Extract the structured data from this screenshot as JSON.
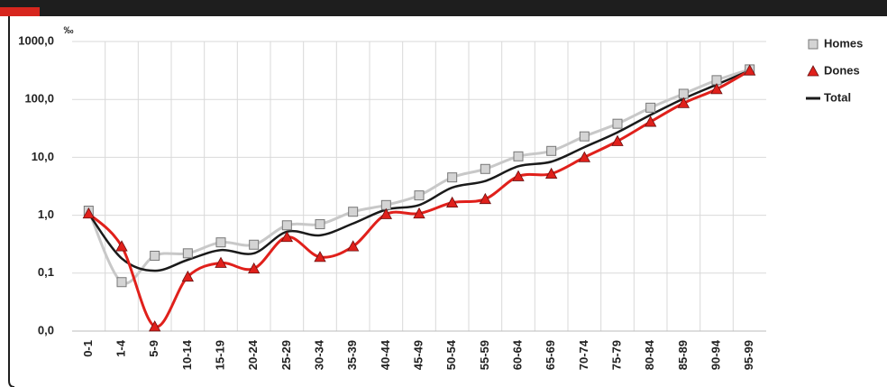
{
  "chart_data": {
    "type": "line",
    "y_unit": "‰",
    "categories": [
      "0-1",
      "1-4",
      "5-9",
      "10-14",
      "15-19",
      "20-24",
      "25-29",
      "30-34",
      "35-39",
      "40-44",
      "45-49",
      "50-54",
      "55-59",
      "60-64",
      "65-69",
      "70-74",
      "75-79",
      "80-84",
      "85-89",
      "90-94",
      "95-99"
    ],
    "series": [
      {
        "name": "Homes",
        "color": "#c8c8c8",
        "marker": "square",
        "values": [
          1.2,
          0.07,
          0.2,
          0.22,
          0.34,
          0.31,
          0.67,
          0.7,
          1.15,
          1.5,
          2.2,
          4.5,
          6.3,
          10.4,
          12.9,
          23,
          38,
          72,
          125,
          215,
          330
        ]
      },
      {
        "name": "Dones",
        "color": "#e0201b",
        "marker": "triangle",
        "values": [
          1.07,
          0.29,
          0.012,
          0.087,
          0.15,
          0.12,
          0.42,
          0.19,
          0.29,
          1.04,
          1.07,
          1.65,
          1.9,
          4.7,
          5.2,
          10,
          19,
          41,
          86,
          150,
          315
        ]
      },
      {
        "name": "Total",
        "color": "#1a1a1a",
        "marker": "none",
        "values": [
          1.07,
          0.18,
          0.11,
          0.17,
          0.25,
          0.22,
          0.52,
          0.45,
          0.72,
          1.25,
          1.5,
          3.0,
          3.9,
          7,
          8.4,
          15,
          27,
          54,
          103,
          180,
          315
        ]
      }
    ],
    "log_scale": true,
    "ylim": [
      0.01,
      1000
    ],
    "yticks": [
      {
        "value": 0.01,
        "label": "0,0"
      },
      {
        "value": 0.1,
        "label": "0,1"
      },
      {
        "value": 1,
        "label": "1,0"
      },
      {
        "value": 10,
        "label": "10,0"
      },
      {
        "value": 100,
        "label": "100,0"
      },
      {
        "value": 1000,
        "label": "1000,0"
      }
    ],
    "grid": true,
    "legend": "right"
  }
}
